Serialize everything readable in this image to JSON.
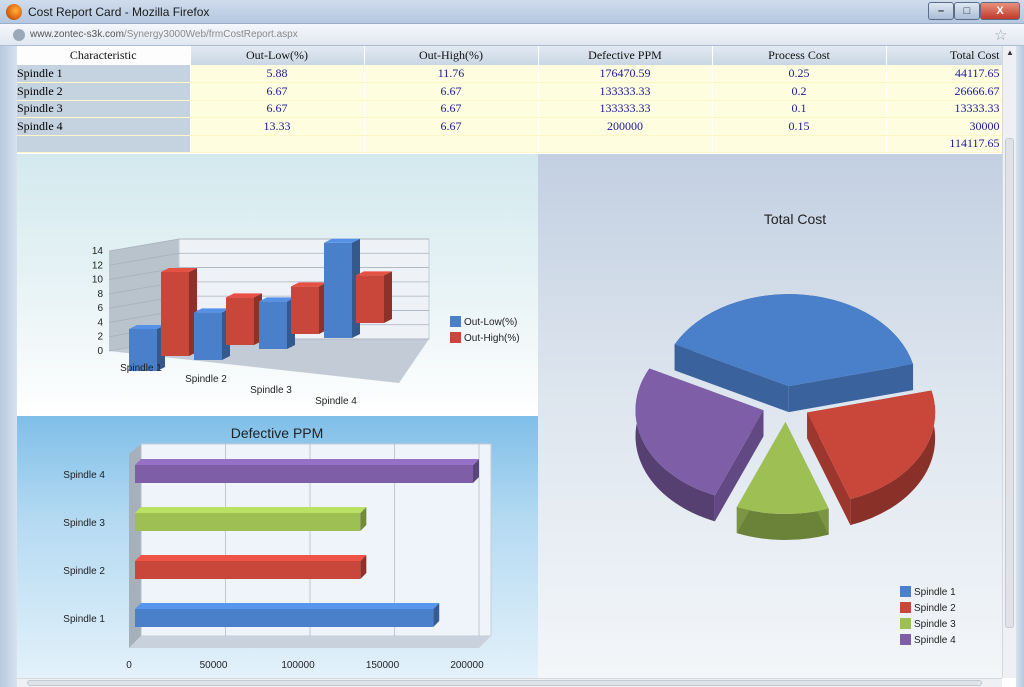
{
  "window": {
    "title": "Cost Report Card - Mozilla Firefox",
    "url_domain": "www.zontec-s3k.com",
    "url_path": "/Synergy3000Web/frmCostReport.aspx",
    "controls": {
      "minimize": "–",
      "maximize": "□",
      "close": "X"
    }
  },
  "table": {
    "headers": [
      "Characteristic",
      "Out-Low(%)",
      "Out-High(%)",
      "Defective PPM",
      "Process Cost",
      "Total Cost"
    ],
    "rows": [
      [
        "Spindle 1",
        "5.88",
        "11.76",
        "176470.59",
        "0.25",
        "44117.65"
      ],
      [
        "Spindle 2",
        "6.67",
        "6.67",
        "133333.33",
        "0.2",
        "26666.67"
      ],
      [
        "Spindle 3",
        "6.67",
        "6.67",
        "133333.33",
        "0.1",
        "13333.33"
      ],
      [
        "Spindle 4",
        "13.33",
        "6.67",
        "200000",
        "0.15",
        "30000"
      ]
    ],
    "total": "114117.65"
  },
  "colors": {
    "blue": "#4a7fc9",
    "red": "#c9463b",
    "green": "#9ebf54",
    "purple": "#7f5ea8"
  },
  "chart_data": [
    {
      "type": "bar",
      "title": "",
      "categories": [
        "Spindle 1",
        "Spindle 2",
        "Spindle 3",
        "Spindle 4"
      ],
      "series": [
        {
          "name": "Out-Low(%)",
          "values": [
            5.88,
            6.67,
            6.67,
            13.33
          ]
        },
        {
          "name": "Out-High(%)",
          "values": [
            11.76,
            6.67,
            6.67,
            6.67
          ]
        }
      ],
      "ylim": [
        0,
        14
      ],
      "yticks": [
        0,
        2,
        4,
        6,
        8,
        10,
        12,
        14
      ],
      "legend": "right",
      "grid": true
    },
    {
      "type": "bar",
      "orientation": "horizontal",
      "title": "Defective PPM",
      "categories": [
        "Spindle 1",
        "Spindle 2",
        "Spindle 3",
        "Spindle 4"
      ],
      "values": [
        176470.59,
        133333.33,
        133333.33,
        200000
      ],
      "xlim": [
        0,
        200000
      ],
      "xticks": [
        0,
        50000,
        100000,
        150000,
        200000
      ],
      "grid": true
    },
    {
      "type": "pie",
      "title": "Total Cost",
      "categories": [
        "Spindle 1",
        "Spindle 2",
        "Spindle 3",
        "Spindle 4"
      ],
      "values": [
        44117.65,
        26666.67,
        13333.33,
        30000
      ],
      "legend": "bottom-right",
      "exploded": true
    }
  ]
}
